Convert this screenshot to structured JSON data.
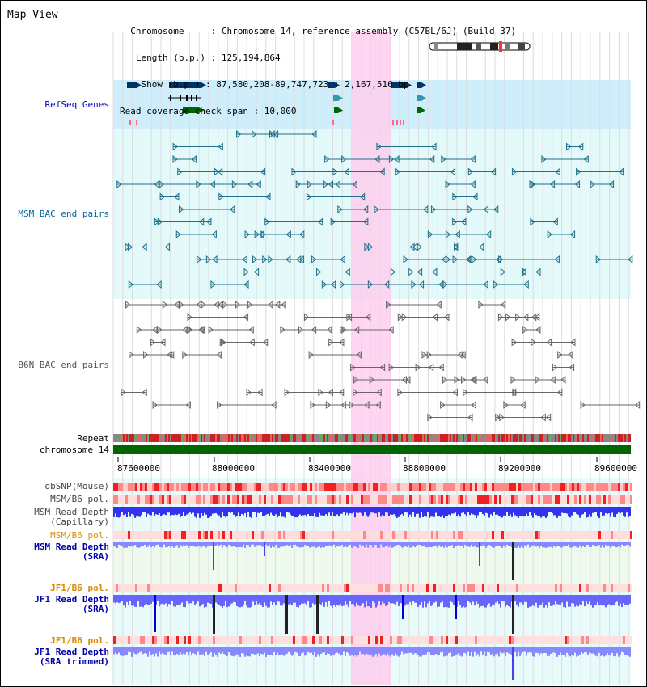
{
  "header": {
    "title": "Map View",
    "info_lines": [
      "  Chromosome     : Chromosome 14, reference assembly (C57BL/6J) (Build 37)",
      "   Length (b.p.) : 125,194,864",
      "    Show (b.p.) : 87,580,208-89,747,723 : 2,167,516 bp",
      "Read coverage check span : 10,000"
    ]
  },
  "tracks": {
    "refseq": "RefSeq Genes",
    "msm_bac": "MSM BAC end pairs",
    "b6n_bac": "B6N BAC end pairs",
    "repeat": "Repeat",
    "chromosome": "chromosome 14",
    "dbsnp": "dbSNP(Mouse)",
    "msm_b6_pol_1": "MSM/B6 pol.",
    "msm_read_depth_cap": [
      "MSM Read Depth",
      "(Capillary)"
    ],
    "msm_b6_pol_2": "MSM/B6 pol.",
    "msm_read_depth_sra": [
      "MSM Read Depth",
      "(SRA)"
    ],
    "jf1_b6_pol_1": "JF1/B6 pol.",
    "jf1_read_depth_sra": [
      "JF1 Read Depth",
      "(SRA)"
    ],
    "jf1_b6_pol_2": "JF1/B6 pol.",
    "jf1_read_depth_trim": [
      "JF1 Read Depth",
      "(SRA trimmed)"
    ]
  },
  "axis": {
    "ticks": [
      "87600000",
      "88000000",
      "88400000",
      "88800000",
      "89200000",
      "89600000"
    ]
  },
  "colors": {
    "refseq_label": "#0000cc",
    "msm_label": "#006699",
    "b6n_label": "#666666",
    "pol_label_orange": "#dd8800",
    "read_depth_label": "#0000aa",
    "highlight": "#ffccee",
    "grid_bg": "#e8fbfb"
  }
}
